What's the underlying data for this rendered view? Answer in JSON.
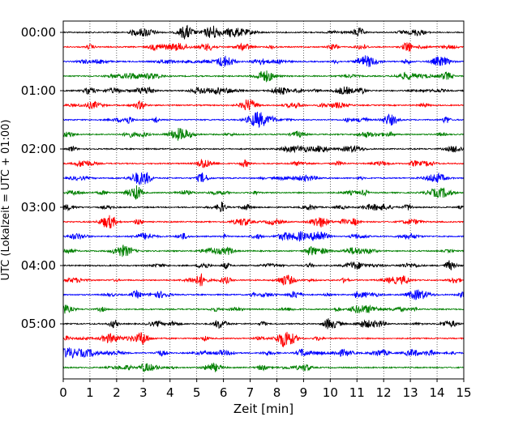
{
  "chart_data": {
    "type": "line",
    "title": "",
    "xlabel": "Zeit  [min]",
    "ylabel": "UTC (Lokalzeit = UTC + 01:00)",
    "xlim": [
      0,
      15
    ],
    "x_ticks": [
      "0",
      "1",
      "2",
      "3",
      "4",
      "5",
      "6",
      "7",
      "8",
      "9",
      "10",
      "11",
      "12",
      "13",
      "14",
      "15"
    ],
    "y_ticks": [
      "00:00",
      "01:00",
      "02:00",
      "03:00",
      "04:00",
      "05:00"
    ],
    "grid": "vertical dotted lines at each minute",
    "trace_colors": [
      "#000000",
      "#ff0000",
      "#0000ff",
      "#008000"
    ],
    "trace_count": 24,
    "minutes_per_trace": 15
  }
}
